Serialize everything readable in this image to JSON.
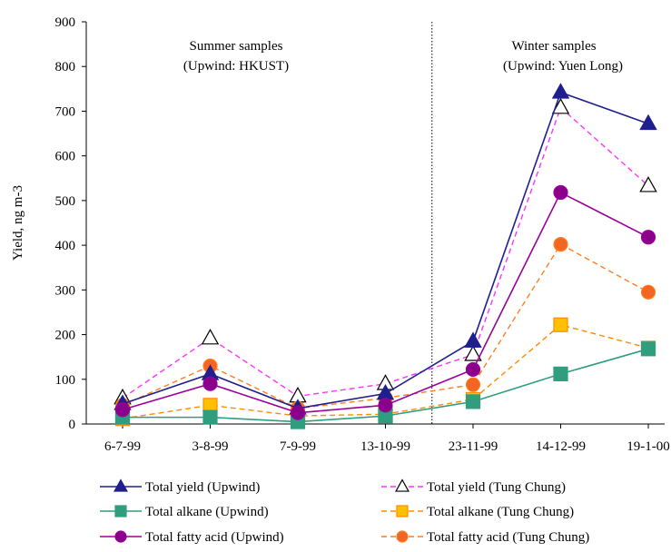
{
  "chart_data": {
    "type": "line",
    "ylabel": "Yield, ng m-3",
    "ylim": [
      0,
      900
    ],
    "yticks": [
      0,
      100,
      200,
      300,
      400,
      500,
      600,
      700,
      800,
      900
    ],
    "categories": [
      "6-7-99",
      "3-8-99",
      "7-9-99",
      "13-10-99",
      "23-11-99",
      "14-12-99",
      "19-1-00"
    ],
    "annotations": {
      "summer": [
        "Summer samples",
        "(Upwind: HKUST)"
      ],
      "winter": [
        "Winter samples",
        "(Upwind: Yuen Long)"
      ]
    },
    "divider_between": [
      "13-10-99",
      "23-11-99"
    ],
    "series": [
      {
        "name": "Total yield (Upwind)",
        "color": "#1f1f8f",
        "dashed": false,
        "marker": "triangle",
        "filled": true,
        "values": [
          45,
          112,
          35,
          68,
          185,
          742,
          672
        ]
      },
      {
        "name": "Total yield (Tung Chung)",
        "color": "#ff33ff",
        "dashed": true,
        "marker": "triangle",
        "filled": false,
        "values": [
          58,
          192,
          62,
          90,
          155,
          708,
          533
        ]
      },
      {
        "name": "Total alkane (Upwind)",
        "color": "#2e9e7e",
        "dashed": false,
        "marker": "square",
        "filled": true,
        "values": [
          15,
          15,
          5,
          18,
          50,
          112,
          168
        ]
      },
      {
        "name": "Total alkane (Tung Chung)",
        "color": "#ff8c00",
        "dashed": true,
        "marker": "square",
        "filled": true,
        "fill": "#ffc000",
        "values": [
          12,
          42,
          18,
          22,
          55,
          222,
          170
        ]
      },
      {
        "name": "Total fatty acid (Upwind)",
        "color": "#9b009b",
        "dashed": false,
        "marker": "circle",
        "filled": true,
        "fill": "#8a008a",
        "values": [
          32,
          90,
          25,
          42,
          122,
          518,
          418
        ]
      },
      {
        "name": "Total fatty acid (Tung Chung)",
        "color": "#ff7f1f",
        "dashed": true,
        "marker": "circle",
        "filled": true,
        "fill": "#f26522",
        "values": [
          42,
          130,
          35,
          58,
          88,
          402,
          295
        ]
      }
    ]
  }
}
